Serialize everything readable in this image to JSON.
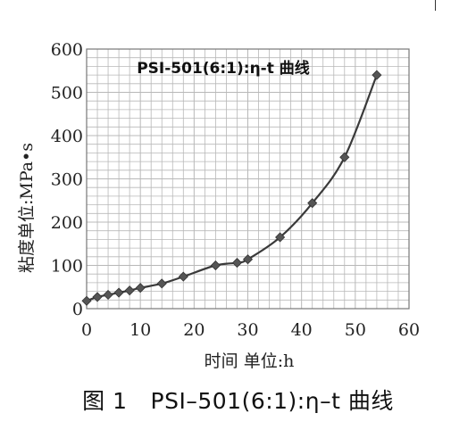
{
  "chart_data": {
    "type": "line",
    "title": "PSI-501(6:1):η-t 曲线",
    "xlabel": "时间 单位:h",
    "ylabel": "粘度单位:MPa•s",
    "xlim": [
      0,
      60
    ],
    "ylim": [
      0,
      600
    ],
    "x_ticks": [
      0,
      10,
      20,
      30,
      40,
      50,
      60
    ],
    "y_ticks": [
      0,
      100,
      200,
      300,
      400,
      500,
      600
    ],
    "grid": true,
    "marker": "diamond",
    "series": [
      {
        "x": [
          0,
          2,
          4,
          6,
          8,
          10,
          14,
          18,
          24,
          28,
          30,
          36,
          42,
          48,
          54
        ],
        "y": [
          18,
          27,
          32,
          37,
          42,
          48,
          58,
          74,
          100,
          106,
          114,
          165,
          244,
          350,
          540
        ]
      }
    ]
  },
  "caption": {
    "figure_no": "图 1",
    "text": "PSI–501(6:1):η–t 曲线"
  },
  "colors": {
    "line": "#3a3a3a",
    "marker": "#555555",
    "grid": "#b8b8b8",
    "axis": "#777777"
  }
}
